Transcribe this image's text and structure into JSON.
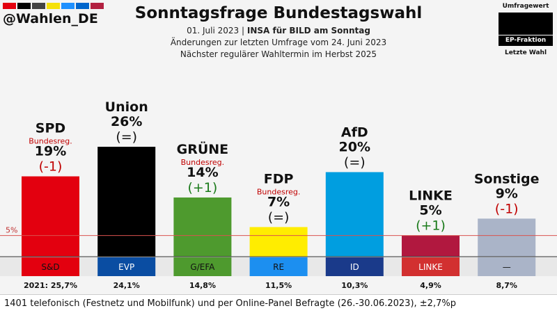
{
  "handle": "@Wahlen_DE",
  "stripe_colors": [
    "#e3000f",
    "#000000",
    "#444444",
    "#f5e10a",
    "#1e90ff",
    "#0066cc",
    "#b22040"
  ],
  "header": {
    "title": "Sonntagsfrage Bundestagswahl",
    "date": "01. Juli 2023",
    "poll": "INSA für BILD am Sonntag",
    "changes": "Änderungen zur letzten Umfrage vom 24. Juni 2023",
    "next": "Nächster regulärer Wahltermin im Herbst 2025"
  },
  "legend": {
    "umfragewert": "Umfragewert",
    "ep_fraktion": "EP-Fraktion",
    "letzte_wahl": "Letzte Wahl"
  },
  "footer": "1401 telefonisch (Festnetz und Mobilfunk) und per Online-Panel Befragte (26.-30.06.2023), ±2,7%p",
  "chart_data": {
    "type": "bar",
    "categories": [
      "SPD",
      "Union",
      "GRÜNE",
      "FDP",
      "AfD",
      "LINKE",
      "Sonstige"
    ],
    "values": [
      19,
      26,
      14,
      7,
      20,
      5,
      9
    ],
    "value_labels": [
      "19%",
      "26%",
      "14%",
      "7%",
      "20%",
      "5%",
      "9%"
    ],
    "changes": [
      "(-1)",
      "(=)",
      "(+1)",
      "(=)",
      "(=)",
      "(+1)",
      "(-1)"
    ],
    "bundesreg": [
      "Bundesreg.",
      "",
      "Bundesreg.",
      "Bundesreg.",
      "",
      "",
      ""
    ],
    "ep_groups": [
      "S&D",
      "EVP",
      "G/EFA",
      "RE",
      "ID",
      "LINKE",
      "—"
    ],
    "last_election": [
      "2021: 25,7%",
      "24,1%",
      "14,8%",
      "11,5%",
      "10,3%",
      "4,9%",
      "8,7%"
    ],
    "colors": [
      "#e3000f",
      "#000000",
      "#4e9a2e",
      "#ffed00",
      "#009ee0",
      "#b1183f",
      "#aab4c8"
    ],
    "ep_colors": [
      "#e3000f",
      "#0a4da2",
      "#4e9a2e",
      "#1c8ff0",
      "#1a3a8a",
      "#d23030",
      "#aab4c8"
    ],
    "ep_text_colors": [
      "#111111",
      "#ffffff",
      "#111111",
      "#111111",
      "#ffffff",
      "#ffffff",
      "#111111"
    ],
    "threshold": 5,
    "threshold_label": "5%",
    "ylim": [
      0,
      26
    ]
  }
}
